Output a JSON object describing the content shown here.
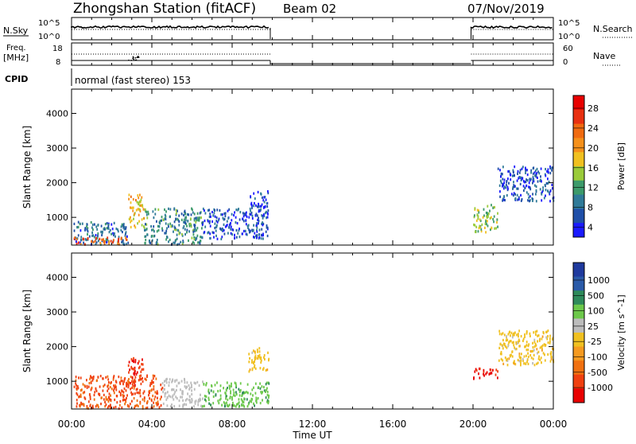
{
  "header": {
    "station": "Zhongshan Station (fitACF)",
    "beam": "Beam 02",
    "date": "07/Nov/2019"
  },
  "panels": {
    "nsky": {
      "label": "N.Sky",
      "left_ticks": [
        "10^5",
        "10^0"
      ],
      "right_ticks": [
        "10^5",
        "10^0"
      ],
      "right_label": "N.Search"
    },
    "freq": {
      "label_lines": [
        "Freq.",
        "[MHz]"
      ],
      "left_ticks": [
        "18",
        "8"
      ],
      "right_ticks": [
        "60",
        "0"
      ],
      "right_label": "Nave"
    },
    "cpid": {
      "label": "CPID",
      "mode_text": "normal (fast stereo) 153"
    }
  },
  "time_axis": {
    "tick_labels": [
      "00:00",
      "04:00",
      "08:00",
      "12:00",
      "16:00",
      "20:00",
      "00:00"
    ],
    "label": "Time UT"
  },
  "power_colorbar": {
    "label": "Power [dB]",
    "ticks": [
      "4",
      "8",
      "12",
      "16",
      "20",
      "24",
      "28"
    ],
    "colors": [
      "#1a1aff",
      "#1f4fa8",
      "#2f7a98",
      "#3c9a6a",
      "#9acb3a",
      "#f0c020",
      "#f5901a",
      "#f06a10",
      "#e83010",
      "#e80000"
    ]
  },
  "velocity_colorbar": {
    "label": "Velocity [m s^-1]",
    "ticks": [
      "1000",
      "500",
      "100",
      "25",
      "-25",
      "-100",
      "-500",
      "-1000"
    ],
    "colors": [
      "#1f3a9e",
      "#2a5aa8",
      "#2e8a5a",
      "#6cc84a",
      "#bcbcbc",
      "#f0c020",
      "#f59a20",
      "#f07010",
      "#f04010",
      "#e80000"
    ]
  },
  "chart_data": {
    "type": "heatmap",
    "title": "Zhongshan Station (fitACF)",
    "xlabel": "Time UT",
    "x_ticks": [
      "00:00",
      "04:00",
      "08:00",
      "12:00",
      "16:00",
      "20:00",
      "00:00"
    ],
    "xlim_hours": [
      0,
      24
    ],
    "data_gap_hours": [
      9.9,
      19.9
    ],
    "panels": [
      {
        "name": "Power",
        "ylabel": "Slant Range [km]",
        "y_ticks": [
          1000,
          2000,
          3000,
          4000
        ],
        "ylim_km": [
          200,
          4700
        ],
        "colorbar": {
          "label": "Power [dB]",
          "ticks": [
            4,
            8,
            12,
            16,
            20,
            24,
            28
          ]
        },
        "scatter_regions": [
          {
            "t0": 0.1,
            "t1": 2.8,
            "r0": 250,
            "r1": 900,
            "value_dB": 8
          },
          {
            "t0": 0.1,
            "t1": 2.8,
            "r0": 250,
            "r1": 450,
            "value_dB": 24
          },
          {
            "t0": 2.8,
            "t1": 3.6,
            "r0": 700,
            "r1": 1700,
            "value_dB": 18
          },
          {
            "t0": 3.6,
            "t1": 6.5,
            "r0": 250,
            "r1": 1300,
            "value_dB": 10
          },
          {
            "t0": 6.5,
            "t1": 9.8,
            "r0": 400,
            "r1": 1300,
            "value_dB": 6
          },
          {
            "t0": 8.8,
            "t1": 9.8,
            "r0": 1300,
            "r1": 1800,
            "value_dB": 5
          },
          {
            "t0": 20.0,
            "t1": 21.2,
            "r0": 600,
            "r1": 1400,
            "value_dB": 14
          },
          {
            "t0": 21.2,
            "t1": 24.0,
            "r0": 1500,
            "r1": 2500,
            "value_dB": 6
          }
        ]
      },
      {
        "name": "Velocity",
        "ylabel": "Slant Range [km]",
        "y_ticks": [
          1000,
          2000,
          3000,
          4000
        ],
        "ylim_km": [
          200,
          4700
        ],
        "colorbar": {
          "label": "Velocity [m s^-1]",
          "ticks": [
            1000,
            500,
            100,
            25,
            -25,
            -100,
            -500,
            -1000
          ]
        },
        "scatter_regions": [
          {
            "t0": 0.1,
            "t1": 4.5,
            "r0": 250,
            "r1": 1200,
            "value_ms": -300
          },
          {
            "t0": 2.8,
            "t1": 3.6,
            "r0": 900,
            "r1": 1700,
            "value_ms": -450
          },
          {
            "t0": 4.5,
            "t1": 6.5,
            "r0": 300,
            "r1": 1100,
            "value_ms": 60
          },
          {
            "t0": 6.5,
            "t1": 9.8,
            "r0": 300,
            "r1": 1000,
            "value_ms": 200
          },
          {
            "t0": 8.8,
            "t1": 9.8,
            "r0": 1300,
            "r1": 2000,
            "value_ms": 0
          },
          {
            "t0": 20.0,
            "t1": 21.2,
            "r0": 1100,
            "r1": 1400,
            "value_ms": -600
          },
          {
            "t0": 21.2,
            "t1": 24.0,
            "r0": 1500,
            "r1": 2500,
            "value_ms": 0
          }
        ]
      }
    ],
    "nsky_trace": {
      "on_segments_hours": [
        [
          0,
          9.9
        ],
        [
          19.9,
          24
        ]
      ]
    },
    "freq_trace": {
      "dip_hours": [
        2.8,
        3.4
      ]
    }
  }
}
